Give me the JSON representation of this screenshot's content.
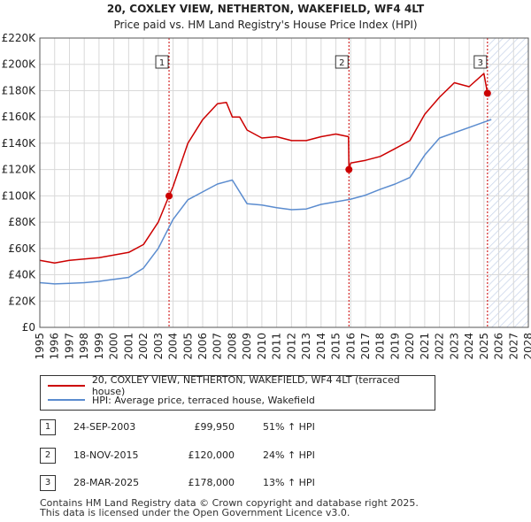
{
  "title": "20, COXLEY VIEW, NETHERTON, WAKEFIELD, WF4 4LT",
  "subtitle": "Price paid vs. HM Land Registry's House Price Index (HPI)",
  "colors": {
    "price": "#cc0000",
    "hpi": "#5b8ccf",
    "grid": "#d9d9d9",
    "future_hatch": "#aab8d8",
    "marker_line": "#cc0000"
  },
  "chart_data": {
    "type": "line",
    "title": "Price paid vs. HM Land Registry's House Price Index (HPI)",
    "xlabel": "",
    "ylabel": "",
    "xlim": [
      1995,
      2028
    ],
    "ylim": [
      0,
      220000
    ],
    "x_ticks": [
      1995,
      1996,
      1997,
      1998,
      1999,
      2000,
      2001,
      2002,
      2003,
      2004,
      2005,
      2006,
      2007,
      2008,
      2009,
      2010,
      2011,
      2012,
      2013,
      2014,
      2015,
      2016,
      2017,
      2018,
      2019,
      2020,
      2021,
      2022,
      2023,
      2024,
      2025,
      2026,
      2027,
      2028
    ],
    "y_ticks": [
      0,
      20000,
      40000,
      60000,
      80000,
      100000,
      120000,
      140000,
      160000,
      180000,
      200000,
      220000
    ],
    "y_tick_labels": [
      "£0",
      "£20K",
      "£40K",
      "£60K",
      "£80K",
      "£100K",
      "£120K",
      "£140K",
      "£160K",
      "£180K",
      "£200K",
      "£220K"
    ],
    "future_from": 2025.3,
    "series": [
      {
        "name": "20, COXLEY VIEW, NETHERTON, WAKEFIELD, WF4 4LT (terraced house)",
        "color": "#cc0000",
        "x": [
          1995,
          1996,
          1997,
          1998,
          1999,
          2000,
          2001,
          2002,
          2003,
          2003.73,
          2004,
          2005,
          2006,
          2007,
          2007.6,
          2008,
          2008.5,
          2009,
          2010,
          2011,
          2012,
          2013,
          2014,
          2015,
          2015.85,
          2015.88,
          2016,
          2017,
          2018,
          2019,
          2020,
          2021,
          2022,
          2023,
          2024,
          2025,
          2025.24
        ],
        "y": [
          51000,
          49000,
          51000,
          52000,
          53000,
          55000,
          57000,
          63000,
          80000,
          99950,
          107000,
          140000,
          158000,
          170000,
          171000,
          160000,
          160000,
          150000,
          144000,
          145000,
          142000,
          142000,
          145000,
          147000,
          145000,
          120000,
          125000,
          127000,
          130000,
          136000,
          142000,
          162000,
          175000,
          186000,
          183000,
          193000,
          178000
        ]
      },
      {
        "name": "HPI: Average price, terraced house, Wakefield",
        "color": "#5b8ccf",
        "x": [
          1995,
          1996,
          1997,
          1998,
          1999,
          2000,
          2001,
          2002,
          2003,
          2004,
          2005,
          2006,
          2007,
          2008,
          2009,
          2010,
          2011,
          2012,
          2013,
          2014,
          2015,
          2016,
          2017,
          2018,
          2019,
          2020,
          2021,
          2022,
          2023,
          2024,
          2025,
          2025.5
        ],
        "y": [
          34000,
          33000,
          33500,
          34000,
          35000,
          36500,
          38000,
          45000,
          60000,
          82000,
          97000,
          103000,
          109000,
          112000,
          94000,
          93000,
          91000,
          89500,
          90000,
          93500,
          95500,
          97500,
          100500,
          105000,
          109000,
          114000,
          131000,
          144000,
          148000,
          152000,
          156000,
          158000
        ]
      }
    ],
    "markers": [
      {
        "label": "1",
        "x": 2003.73,
        "y": 99950
      },
      {
        "label": "2",
        "x": 2015.88,
        "y": 120000
      },
      {
        "label": "3",
        "x": 2025.24,
        "y": 178000
      }
    ]
  },
  "legend": {
    "price_label": "20, COXLEY VIEW, NETHERTON, WAKEFIELD, WF4 4LT (terraced house)",
    "hpi_label": "HPI: Average price, terraced house, Wakefield"
  },
  "sales": [
    {
      "num": "1",
      "date": "24-SEP-2003",
      "price": "£99,950",
      "hpi": "51% ↑ HPI"
    },
    {
      "num": "2",
      "date": "18-NOV-2015",
      "price": "£120,000",
      "hpi": "24% ↑ HPI"
    },
    {
      "num": "3",
      "date": "28-MAR-2025",
      "price": "£178,000",
      "hpi": "13% ↑ HPI"
    }
  ],
  "footer": {
    "line1": "Contains HM Land Registry data © Crown copyright and database right 2025.",
    "line2": "This data is licensed under the Open Government Licence v3.0."
  }
}
